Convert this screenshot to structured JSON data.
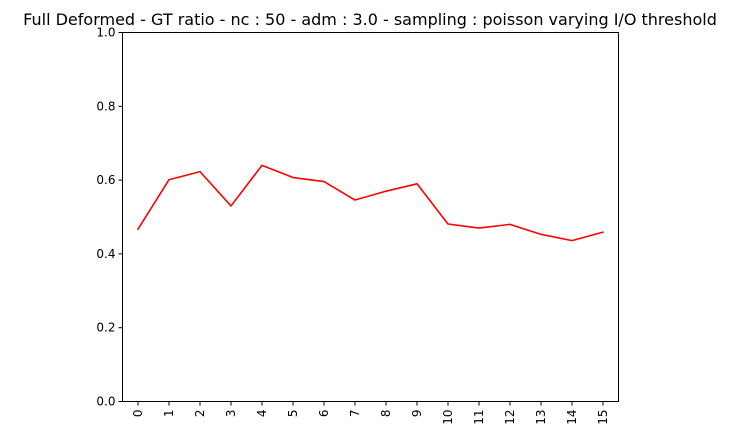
{
  "chart_data": {
    "type": "line",
    "title": "Full Deformed - GT ratio - nc : 50 - adm : 3.0 - sampling : poisson varying I/O threshold",
    "xlabel": "",
    "ylabel": "",
    "x": [
      0,
      1,
      2,
      3,
      4,
      5,
      6,
      7,
      8,
      9,
      10,
      11,
      12,
      13,
      14,
      15
    ],
    "x_tick_labels": [
      "0",
      "1",
      "2",
      "3",
      "4",
      "5",
      "6",
      "7",
      "8",
      "9",
      "10",
      "11",
      "12",
      "13",
      "14",
      "15"
    ],
    "series": [
      {
        "color": "#ff0000",
        "values": [
          0.467,
          0.601,
          0.623,
          0.53,
          0.64,
          0.607,
          0.596,
          0.546,
          0.57,
          0.59,
          0.481,
          0.47,
          0.48,
          0.453,
          0.436,
          0.459
        ]
      }
    ],
    "ylim": [
      0.0,
      1.0
    ],
    "y_ticks": [
      0.0,
      0.2,
      0.4,
      0.6,
      0.8,
      1.0
    ],
    "y_tick_labels": [
      "0.0",
      "0.2",
      "0.4",
      "0.6",
      "0.8",
      "1.0"
    ],
    "grid": false,
    "legend": "none"
  }
}
